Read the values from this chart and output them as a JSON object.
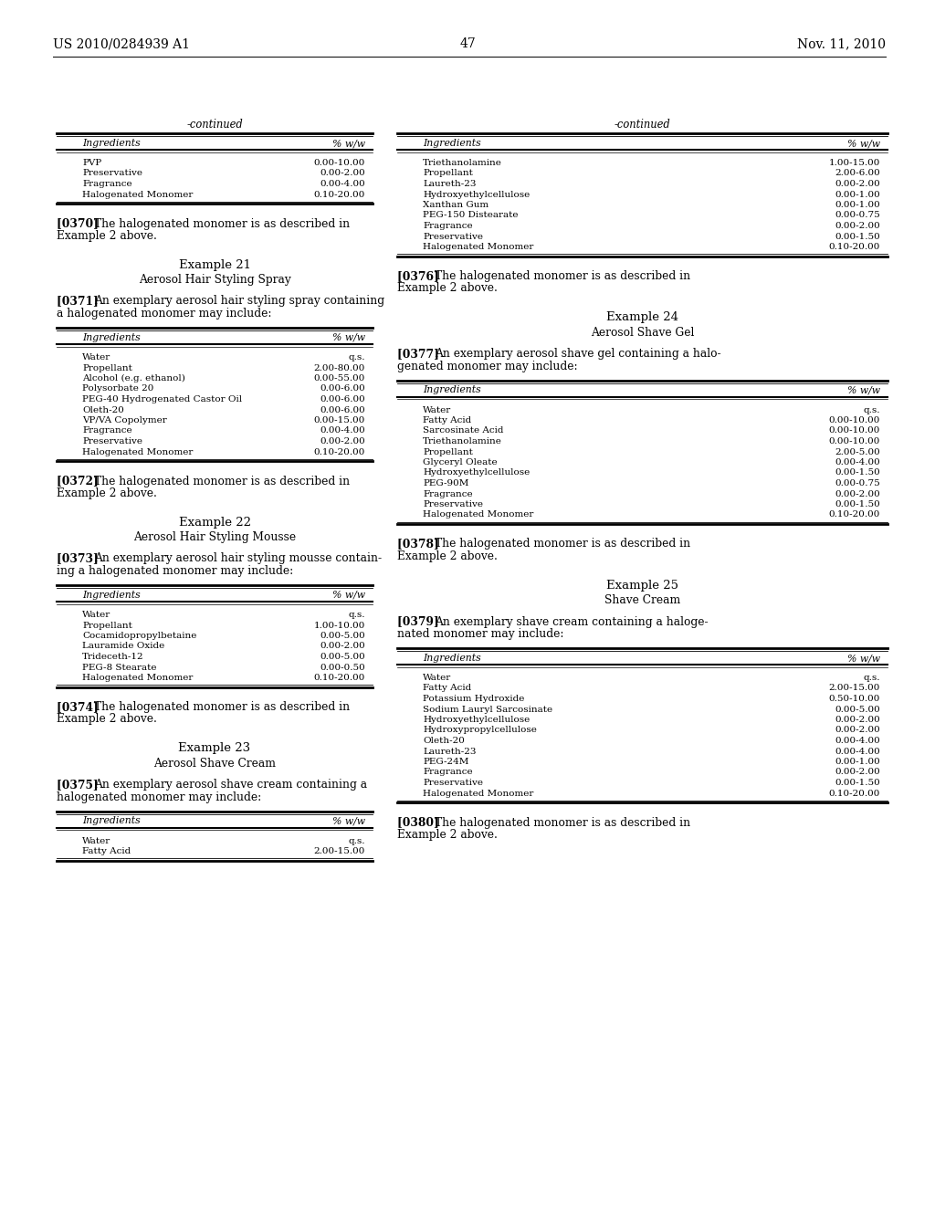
{
  "bg_color": "#ffffff",
  "header_left": "US 2010/0284939 A1",
  "header_right": "Nov. 11, 2010",
  "page_number": "47",
  "left_col": {
    "continued_table": {
      "title": "-continued",
      "header": [
        "Ingredients",
        "% w/w"
      ],
      "rows": [
        [
          "PVP",
          "0.00-10.00"
        ],
        [
          "Preservative",
          "0.00-2.00"
        ],
        [
          "Fragrance",
          "0.00-4.00"
        ],
        [
          "Halogenated Monomer",
          "0.10-20.00"
        ]
      ]
    },
    "para0370_num": "[0370]",
    "para0370_text": "  The halogenated monomer is as described in\nExample 2 above.",
    "example21_title": "Example 21",
    "example21_subtitle": "Aerosol Hair Styling Spray",
    "para0371_num": "[0371]",
    "para0371_text": "  An exemplary aerosol hair styling spray containing\na halogenated monomer may include:",
    "table21": {
      "header": [
        "Ingredients",
        "% w/w"
      ],
      "rows": [
        [
          "Water",
          "q.s."
        ],
        [
          "Propellant",
          "2.00-80.00"
        ],
        [
          "Alcohol (e.g. ethanol)",
          "0.00-55.00"
        ],
        [
          "Polysorbate 20",
          "0.00-6.00"
        ],
        [
          "PEG-40 Hydrogenated Castor Oil",
          "0.00-6.00"
        ],
        [
          "Oleth-20",
          "0.00-6.00"
        ],
        [
          "VP/VA Copolymer",
          "0.00-15.00"
        ],
        [
          "Fragrance",
          "0.00-4.00"
        ],
        [
          "Preservative",
          "0.00-2.00"
        ],
        [
          "Halogenated Monomer",
          "0.10-20.00"
        ]
      ]
    },
    "para0372_num": "[0372]",
    "para0372_text": "  The halogenated monomer is as described in\nExample 2 above.",
    "example22_title": "Example 22",
    "example22_subtitle": "Aerosol Hair Styling Mousse",
    "para0373_num": "[0373]",
    "para0373_text": "  An exemplary aerosol hair styling mousse contain-\ning a halogenated monomer may include:",
    "table22": {
      "header": [
        "Ingredients",
        "% w/w"
      ],
      "rows": [
        [
          "Water",
          "q.s."
        ],
        [
          "Propellant",
          "1.00-10.00"
        ],
        [
          "Cocamidopropylbetaine",
          "0.00-5.00"
        ],
        [
          "Lauramide Oxide",
          "0.00-2.00"
        ],
        [
          "Trideceth-12",
          "0.00-5.00"
        ],
        [
          "PEG-8 Stearate",
          "0.00-0.50"
        ],
        [
          "Halogenated Monomer",
          "0.10-20.00"
        ]
      ]
    },
    "para0374_num": "[0374]",
    "para0374_text": "  The halogenated monomer is as described in\nExample 2 above.",
    "example23_title": "Example 23",
    "example23_subtitle": "Aerosol Shave Cream",
    "para0375_num": "[0375]",
    "para0375_text": "  An exemplary aerosol shave cream containing a\nhalogenated monomer may include:",
    "table23_partial": {
      "header": [
        "Ingredients",
        "% w/w"
      ],
      "rows": [
        [
          "Water",
          "q.s."
        ],
        [
          "Fatty Acid",
          "2.00-15.00"
        ]
      ]
    }
  },
  "right_col": {
    "continued_table": {
      "title": "-continued",
      "header": [
        "Ingredients",
        "% w/w"
      ],
      "rows": [
        [
          "Triethanolamine",
          "1.00-15.00"
        ],
        [
          "Propellant",
          "2.00-6.00"
        ],
        [
          "Laureth-23",
          "0.00-2.00"
        ],
        [
          "Hydroxyethylcellulose",
          "0.00-1.00"
        ],
        [
          "Xanthan Gum",
          "0.00-1.00"
        ],
        [
          "PEG-150 Distearate",
          "0.00-0.75"
        ],
        [
          "Fragrance",
          "0.00-2.00"
        ],
        [
          "Preservative",
          "0.00-1.50"
        ],
        [
          "Halogenated Monomer",
          "0.10-20.00"
        ]
      ]
    },
    "para0376_num": "[0376]",
    "para0376_text": "  The halogenated monomer is as described in\nExample 2 above.",
    "example24_title": "Example 24",
    "example24_subtitle": "Aerosol Shave Gel",
    "para0377_num": "[0377]",
    "para0377_text": "  An exemplary aerosol shave gel containing a halo-\ngenated monomer may include:",
    "table24": {
      "header": [
        "Ingredients",
        "% w/w"
      ],
      "rows": [
        [
          "Water",
          "q.s."
        ],
        [
          "Fatty Acid",
          "0.00-10.00"
        ],
        [
          "Sarcosinate Acid",
          "0.00-10.00"
        ],
        [
          "Triethanolamine",
          "0.00-10.00"
        ],
        [
          "Propellant",
          "2.00-5.00"
        ],
        [
          "Glyceryl Oleate",
          "0.00-4.00"
        ],
        [
          "Hydroxyethylcellulose",
          "0.00-1.50"
        ],
        [
          "PEG-90M",
          "0.00-0.75"
        ],
        [
          "Fragrance",
          "0.00-2.00"
        ],
        [
          "Preservative",
          "0.00-1.50"
        ],
        [
          "Halogenated Monomer",
          "0.10-20.00"
        ]
      ]
    },
    "para0378_num": "[0378]",
    "para0378_text": "  The halogenated monomer is as described in\nExample 2 above.",
    "example25_title": "Example 25",
    "example25_subtitle": "Shave Cream",
    "para0379_num": "[0379]",
    "para0379_text": "  An exemplary shave cream containing a haloge-\nnated monomer may include:",
    "table25": {
      "header": [
        "Ingredients",
        "% w/w"
      ],
      "rows": [
        [
          "Water",
          "q.s."
        ],
        [
          "Fatty Acid",
          "2.00-15.00"
        ],
        [
          "Potassium Hydroxide",
          "0.50-10.00"
        ],
        [
          "Sodium Lauryl Sarcosinate",
          "0.00-5.00"
        ],
        [
          "Hydroxyethylcellulose",
          "0.00-2.00"
        ],
        [
          "Hydroxypropylcellulose",
          "0.00-2.00"
        ],
        [
          "Oleth-20",
          "0.00-4.00"
        ],
        [
          "Laureth-23",
          "0.00-4.00"
        ],
        [
          "PEG-24M",
          "0.00-1.00"
        ],
        [
          "Fragrance",
          "0.00-2.00"
        ],
        [
          "Preservative",
          "0.00-1.50"
        ],
        [
          "Halogenated Monomer",
          "0.10-20.00"
        ]
      ]
    },
    "para0380_num": "[0380]",
    "para0380_text": "  The halogenated monomer is as described in\nExample 2 above."
  }
}
